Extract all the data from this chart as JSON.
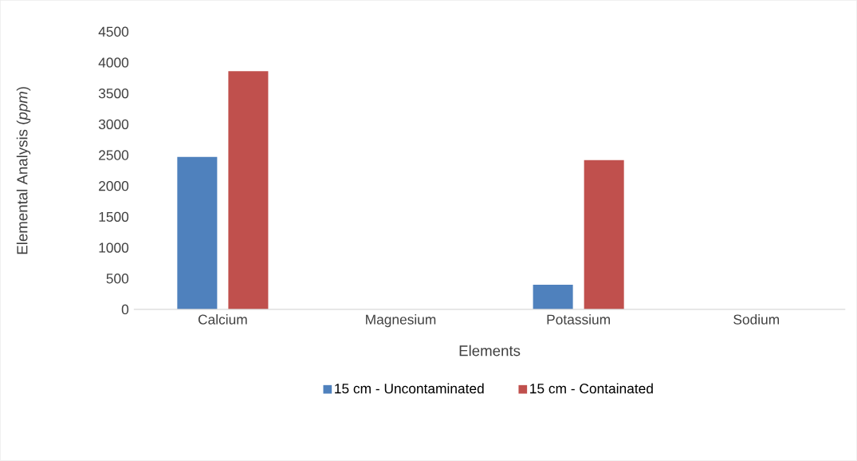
{
  "chart_data": {
    "type": "bar",
    "xlabel": "Elements",
    "ylabel": "Elemental Analysis (*ppm*)",
    "categories": [
      "Calcium",
      "Magnesium",
      "Potassium",
      "Sodium"
    ],
    "series": [
      {
        "name": "15 cm - Uncontaminated",
        "color": "#4f81bd",
        "values": [
          2470,
          0,
          400,
          0
        ]
      },
      {
        "name": "15 cm - Containated",
        "color": "#c0504d",
        "values": [
          3860,
          0,
          2420,
          0
        ]
      }
    ],
    "ylim": [
      0,
      4500
    ],
    "yticks": [
      0,
      500,
      1000,
      1500,
      2000,
      2500,
      3000,
      3500,
      4000,
      4500
    ],
    "legend": "bottom"
  }
}
